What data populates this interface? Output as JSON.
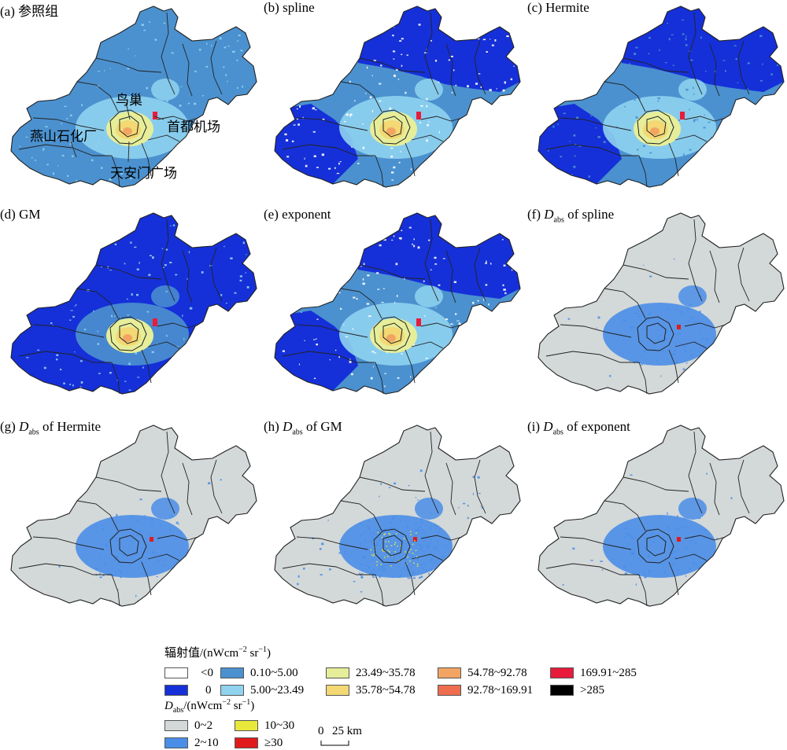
{
  "colors": {
    "neg": "#ffffff",
    "zero": "#1530d8",
    "c1": "#4b91cf",
    "c2": "#8fd3ef",
    "c3": "#e6ee9a",
    "c4": "#f3d873",
    "c5": "#f2a563",
    "c6": "#ee6d4f",
    "c7": "#e81b3b",
    "c8": "#000000",
    "d0": "#d3d8d8",
    "d1": "#4a8ee8",
    "d2": "#e8e83a",
    "d3": "#e11b1b",
    "boundary": "#222222"
  },
  "panels": [
    {
      "label": "(a) 参照组",
      "style": "ref"
    },
    {
      "label": "(b) spline",
      "style": "spline"
    },
    {
      "label": "(c) Hermite",
      "style": "hermite"
    },
    {
      "label": "(d) GM",
      "style": "gm"
    },
    {
      "label": "(e) exponent",
      "style": "exponent"
    },
    {
      "prefix": "(f) ",
      "d": "D",
      "sub": "abs",
      "suffix": " of spline",
      "style": "dabs_spline"
    },
    {
      "prefix": "(g) ",
      "d": "D",
      "sub": "abs",
      "suffix": " of Hermite",
      "style": "dabs_hermite"
    },
    {
      "prefix": "(h) ",
      "d": "D",
      "sub": "abs",
      "suffix": " of GM",
      "style": "dabs_gm"
    },
    {
      "prefix": "(i) ",
      "d": "D",
      "sub": "abs",
      "suffix": " of exponent",
      "style": "dabs_exponent"
    }
  ],
  "annotations": {
    "niaochao": "鸟巢",
    "airport": "首都机场",
    "yanshan": "燕山石化厂",
    "tiananmen": "天安门广场"
  },
  "legend": {
    "radiance_title": "辐射值/(nWcm",
    "radiance_exp": "−2",
    "radiance_mid": " sr",
    "radiance_exp2": "−1",
    "radiance_end": ")",
    "radiance_items": [
      {
        "label": "<0",
        "color": "neg"
      },
      {
        "label": "0",
        "color": "zero"
      },
      {
        "label": "0.10~5.00",
        "color": "c1"
      },
      {
        "label": "5.00~23.49",
        "color": "c2"
      },
      {
        "label": "23.49~35.78",
        "color": "c3"
      },
      {
        "label": "35.78~54.78",
        "color": "c4"
      },
      {
        "label": "54.78~92.78",
        "color": "c5"
      },
      {
        "label": "92.78~169.91",
        "color": "c6"
      },
      {
        "label": "169.91~285",
        "color": "c7"
      },
      {
        "label": ">285",
        "color": "c8"
      }
    ],
    "dabs_d": "D",
    "dabs_sub": "abs",
    "dabs_title": "/(nWcm",
    "dabs_exp": "−2",
    "dabs_mid": " sr",
    "dabs_exp2": "−1",
    "dabs_end": ")",
    "dabs_items": [
      {
        "label": "0~2",
        "color": "d0"
      },
      {
        "label": "2~10",
        "color": "d1"
      },
      {
        "label": "10~30",
        "color": "d2"
      },
      {
        "label": "≥30",
        "color": "d3"
      }
    ]
  },
  "scalebar": {
    "zero": "0",
    "dist": "25 km"
  }
}
